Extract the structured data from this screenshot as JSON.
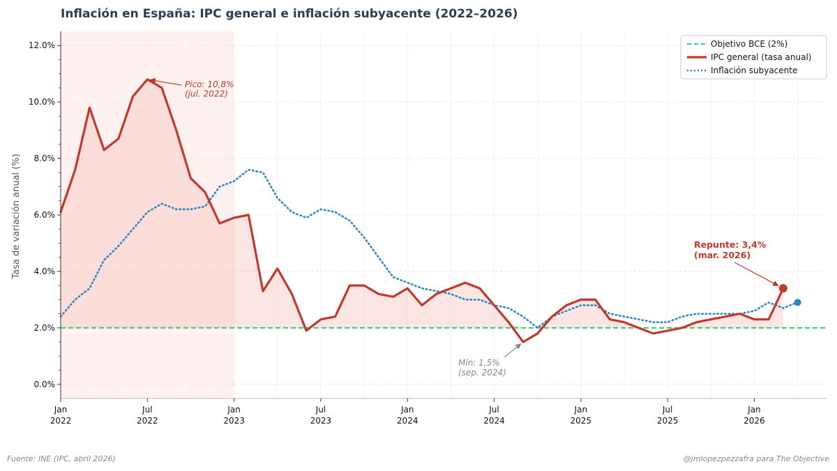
{
  "chart_data": {
    "type": "line",
    "title": "Inflación en España: IPC general e inflación subyacente (2022–2026)",
    "ylabel": "Tasa de variación anual (%)",
    "xlabel": "",
    "ylim": [
      -0.5,
      12.5
    ],
    "yticks": [
      0,
      2,
      4,
      6,
      8,
      10,
      12
    ],
    "ytick_labels": [
      "0.0%",
      "2.0%",
      "4.0%",
      "6.0%",
      "8.0%",
      "10.0%",
      "12.0%"
    ],
    "x_start": "2022-01",
    "x_end": "2026-06",
    "xticks": [
      {
        "month_index": 0,
        "line1": "Jan",
        "line2": "2022"
      },
      {
        "month_index": 6,
        "line1": "Jul",
        "line2": "2022"
      },
      {
        "month_index": 12,
        "line1": "Jan",
        "line2": "2023"
      },
      {
        "month_index": 18,
        "line1": "Jul",
        "line2": "2023"
      },
      {
        "month_index": 24,
        "line1": "Jan",
        "line2": "2024"
      },
      {
        "month_index": 30,
        "line1": "Jul",
        "line2": "2024"
      },
      {
        "month_index": 36,
        "line1": "Jan",
        "line2": "2025"
      },
      {
        "month_index": 42,
        "line1": "Jul",
        "line2": "2025"
      },
      {
        "month_index": 48,
        "line1": "Jan",
        "line2": "2026"
      }
    ],
    "grid": true,
    "highlight_period": {
      "from_month_index": 0,
      "to_month_index": 12,
      "color": "#fdebe9"
    },
    "reference_line": {
      "name": "Objetivo BCE (2%)",
      "value": 2.0,
      "color": "#2ecc71",
      "style": "dashed"
    },
    "series": [
      {
        "name": "IPC general (tasa anual)",
        "color": "#c0392b",
        "style": "solid",
        "fill_above_reference": true,
        "values": [
          6.1,
          7.6,
          9.8,
          8.3,
          8.7,
          10.2,
          10.8,
          10.5,
          9.0,
          7.3,
          6.8,
          5.7,
          5.9,
          6.0,
          3.3,
          4.1,
          3.2,
          1.9,
          2.3,
          2.4,
          3.5,
          3.5,
          3.2,
          3.1,
          3.4,
          2.8,
          3.2,
          3.4,
          3.6,
          3.4,
          2.8,
          2.2,
          1.5,
          1.8,
          2.4,
          2.8,
          3.0,
          3.0,
          2.3,
          2.2,
          2.0,
          1.8,
          1.9,
          2.0,
          2.2,
          2.3,
          2.4,
          2.5,
          2.3,
          2.3,
          3.4
        ]
      },
      {
        "name": "Inflación subyacente",
        "color": "#2e86c1",
        "style": "dotted",
        "values": [
          2.4,
          3.0,
          3.4,
          4.4,
          4.9,
          5.5,
          6.1,
          6.4,
          6.2,
          6.2,
          6.3,
          7.0,
          7.2,
          7.6,
          7.5,
          6.6,
          6.1,
          5.9,
          6.2,
          6.1,
          5.8,
          5.2,
          4.5,
          3.8,
          3.6,
          3.4,
          3.3,
          3.2,
          3.0,
          3.0,
          2.8,
          2.7,
          2.4,
          2.0,
          2.4,
          2.6,
          2.8,
          2.8,
          2.5,
          2.4,
          2.3,
          2.2,
          2.2,
          2.4,
          2.5,
          2.5,
          2.5,
          2.5,
          2.6,
          2.9,
          2.7,
          2.9
        ]
      }
    ],
    "legend": {
      "position": "top-right",
      "entries": [
        "Objetivo BCE (2%)",
        "IPC general (tasa anual)",
        "Inflación subyacente"
      ]
    },
    "annotations": [
      {
        "kind": "peak",
        "lines": [
          "Pico: 10,8%",
          "(jul. 2022)"
        ],
        "target_month_index": 6,
        "target_value": 10.8
      },
      {
        "kind": "min",
        "lines": [
          "Mín: 1,5%",
          "(sep. 2024)"
        ],
        "target_month_index": 32,
        "target_value": 1.5
      },
      {
        "kind": "rebound",
        "lines": [
          "Repunte: 3,4%",
          "(mar. 2026)"
        ],
        "target_month_index": 50,
        "target_value": 3.4
      }
    ]
  },
  "footer": {
    "source": "Fuente: INE (IPC, abril 2026)",
    "credit": "@jmlopezpezzafra para The Objective"
  }
}
